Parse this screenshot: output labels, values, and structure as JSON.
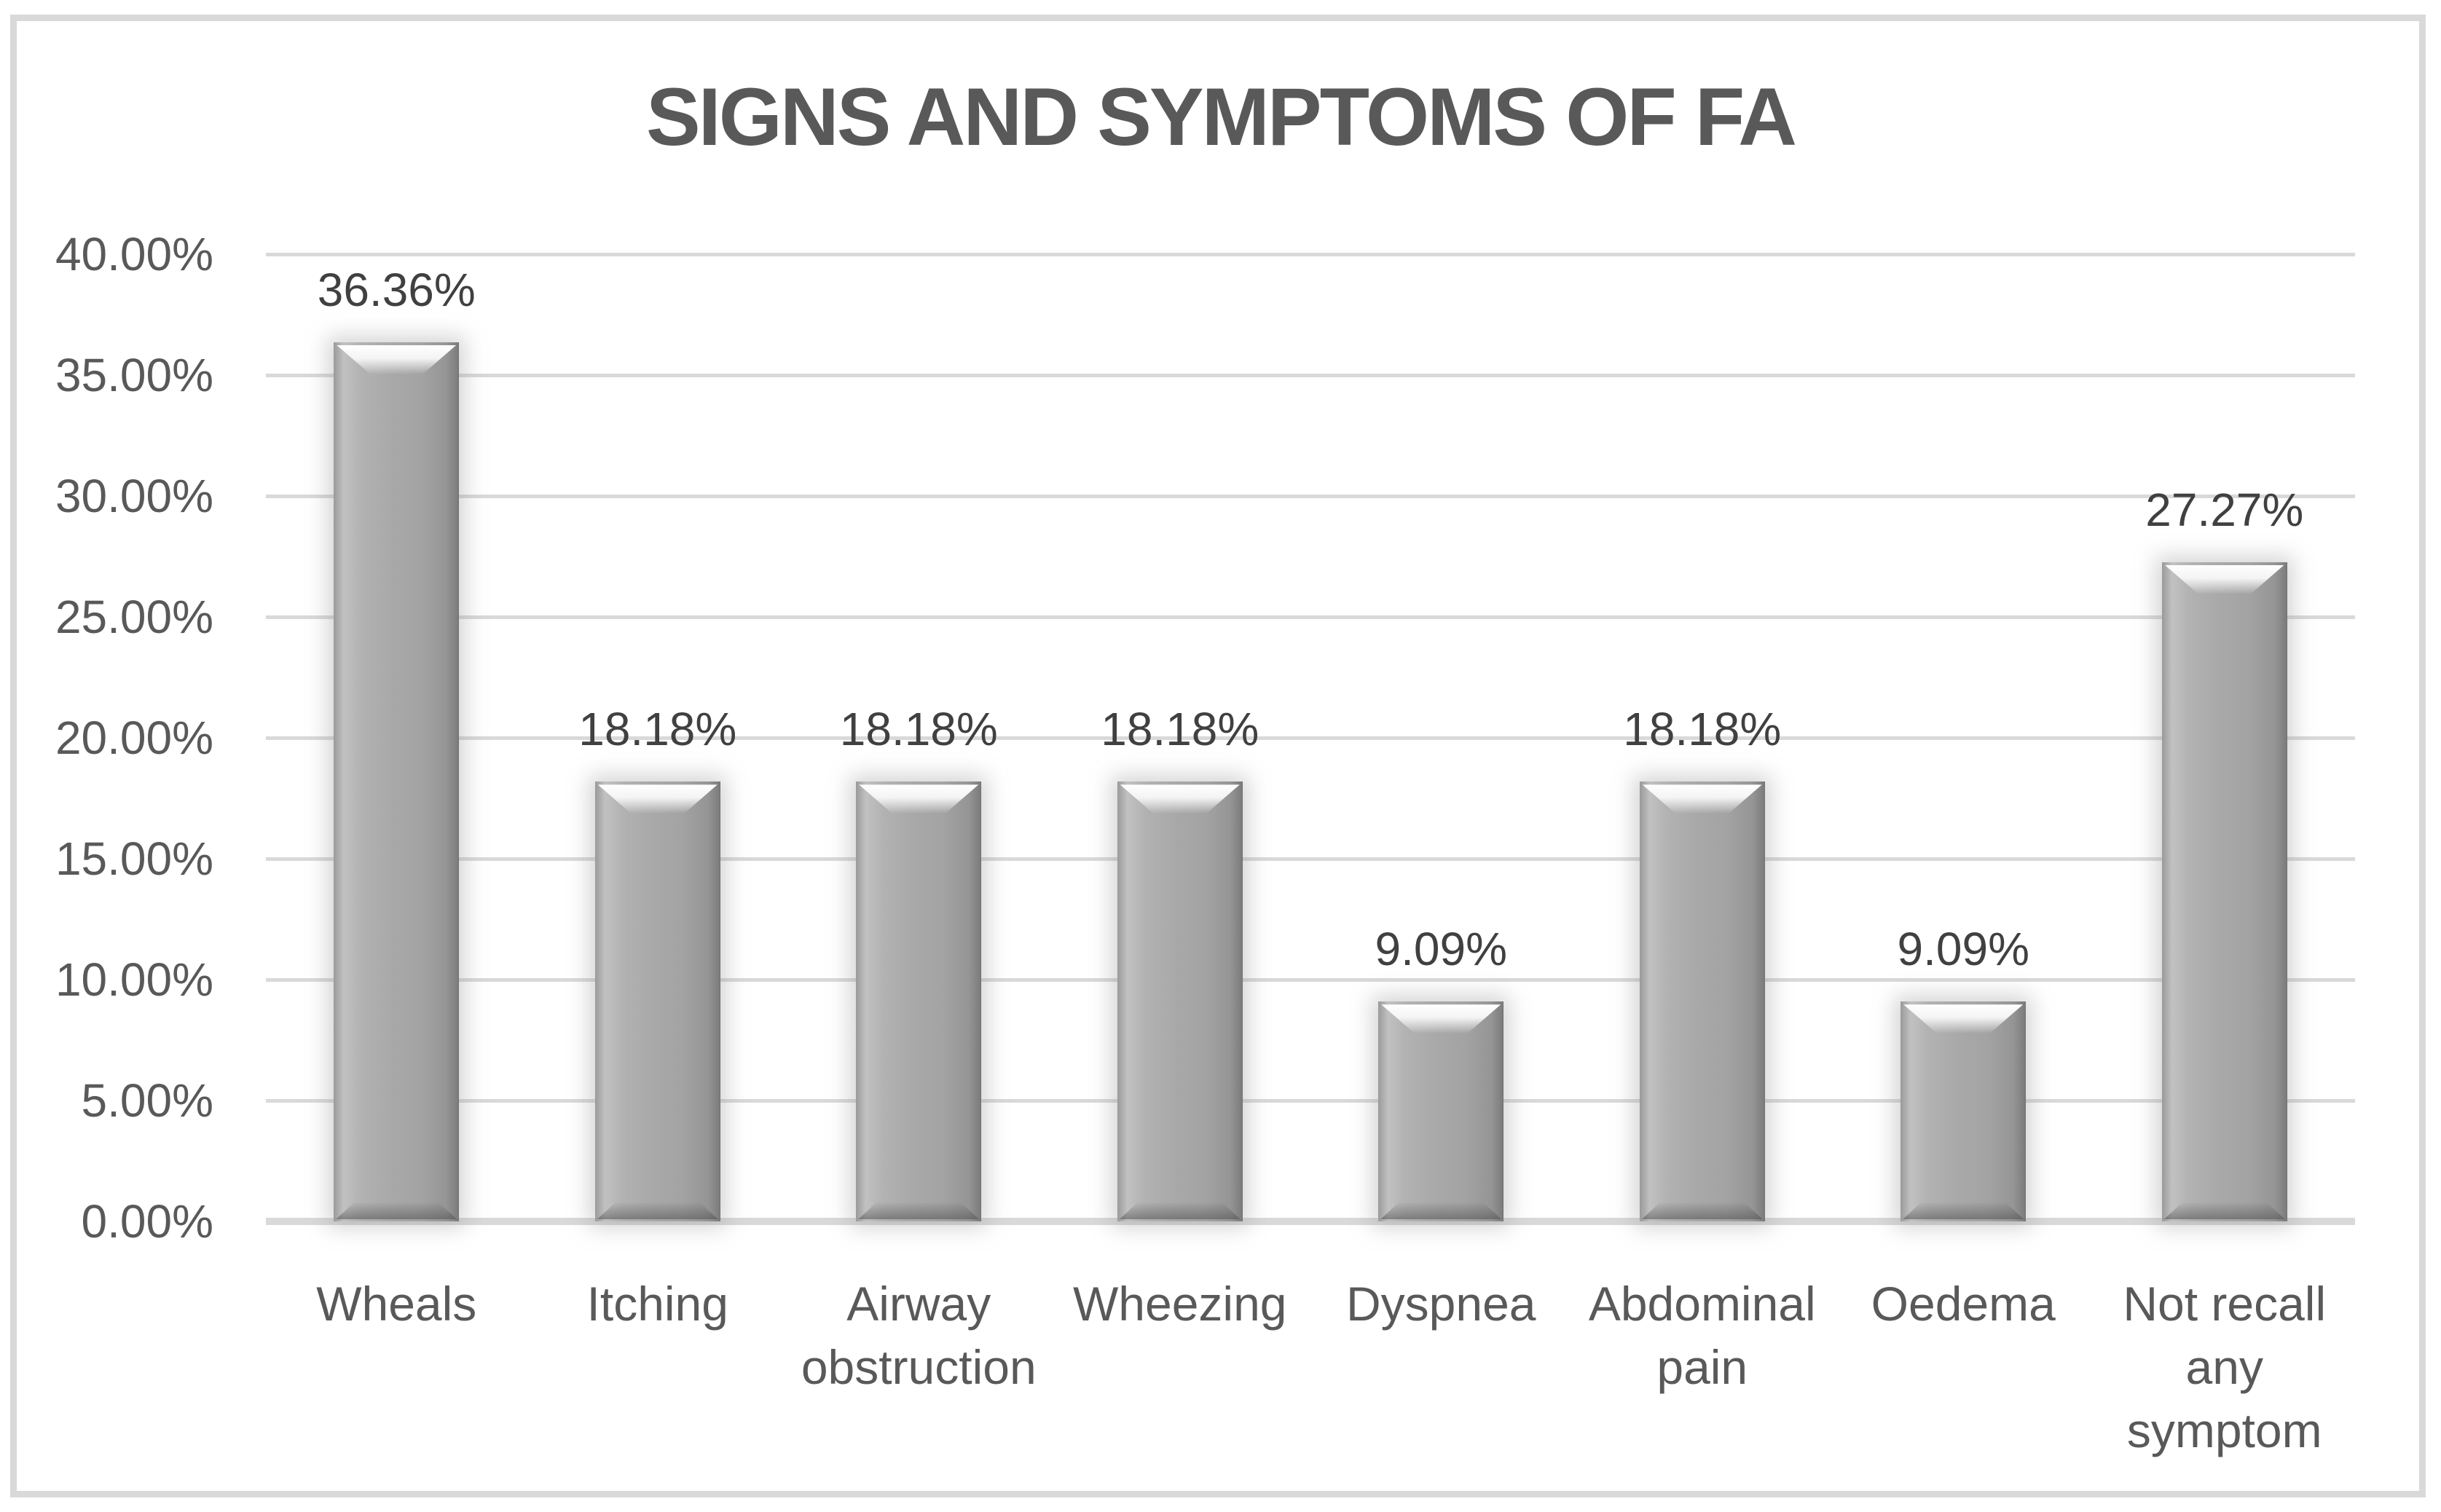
{
  "title": "SIGNS AND SYMPTOMS OF FA",
  "chart_data": {
    "type": "bar",
    "title": "SIGNS AND SYMPTOMS OF FA",
    "categories": [
      "Wheals",
      "Itching",
      "Airway obstruction",
      "Wheezing",
      "Dyspnea",
      "Abdominal pain",
      "Oedema",
      "Not recall any symptom"
    ],
    "values": [
      36.36,
      18.18,
      18.18,
      18.18,
      9.09,
      18.18,
      9.09,
      27.27
    ],
    "data_labels": [
      "36.36%",
      "18.18%",
      "18.18%",
      "18.18%",
      "9.09%",
      "18.18%",
      "9.09%",
      "27.27%"
    ],
    "y_ticks": [
      "0.00%",
      "5.00%",
      "10.00%",
      "15.00%",
      "20.00%",
      "25.00%",
      "30.00%",
      "35.00%",
      "40.00%"
    ],
    "ylim": [
      0,
      40
    ],
    "y_tick_step": 5,
    "xlabel": "",
    "ylabel": "",
    "grid": true,
    "legend": "none",
    "colors": {
      "bar_fill": "#a6a6a6",
      "gridline": "#d9d9d9",
      "axis_line": "#d9d9d9",
      "border": "#d9d9d9",
      "title_text": "#595959",
      "tick_text": "#595959",
      "category_text": "#595959",
      "data_label_text": "#404040",
      "background": "#ffffff"
    }
  }
}
